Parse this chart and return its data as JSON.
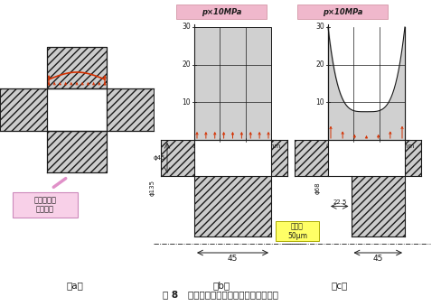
{
  "title": "图 8   过盈连接的应力集中和接触应力分布",
  "label_a": "（a）",
  "label_b": "（b）",
  "label_c": "（c）",
  "annotation_a": "过盈连接的\n应力集中",
  "pressure_label": "p×10MPa",
  "box_label": "过盈量\n50μm",
  "dim_45": "45",
  "dim_22_5": "22.5",
  "phi_135": "ϕ135",
  "phi_45": "ϕ45",
  "phi_68": "ϕ68",
  "orange": "#d43000",
  "pink_fill": "#f0b8cc",
  "yellow_fill": "#ffff66",
  "pink_arrow": "#e090c8",
  "hatch_gray": "#bbbbbb",
  "black": "#1a1a1a"
}
